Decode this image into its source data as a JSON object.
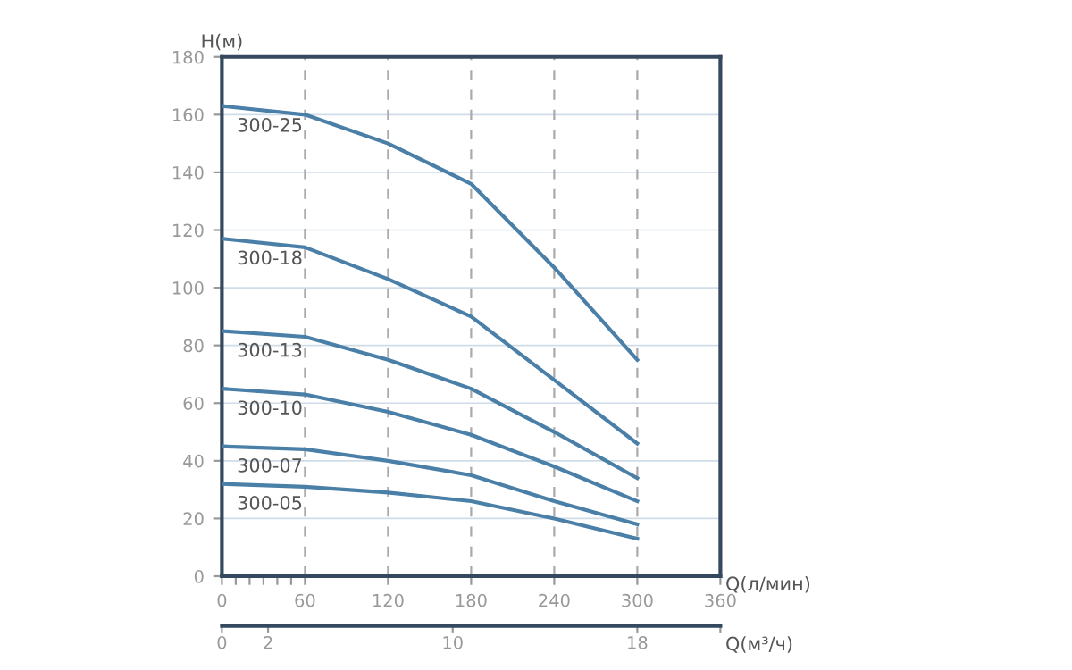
{
  "chart_data": {
    "type": "line",
    "xlabel": "Q(л/мин)",
    "x2label": "Q(м³/ч)",
    "ylabel": "H(м)",
    "x": [
      0,
      60,
      120,
      180,
      240,
      300
    ],
    "series": [
      {
        "name": "300-25",
        "color": "#4a7fa8",
        "values": [
          163,
          160,
          150,
          136,
          107,
          75
        ]
      },
      {
        "name": "300-18",
        "color": "#4a7fa8",
        "values": [
          117,
          114,
          103,
          90,
          68,
          46
        ]
      },
      {
        "name": "300-13",
        "color": "#4a7fa8",
        "values": [
          85,
          83,
          75,
          65,
          50,
          34
        ]
      },
      {
        "name": "300-10",
        "color": "#4a7fa8",
        "values": [
          65,
          63,
          57,
          49,
          38,
          26
        ]
      },
      {
        "name": "300-07",
        "color": "#4a7fa8",
        "values": [
          45,
          44,
          40,
          35,
          26,
          18
        ]
      },
      {
        "name": "300-05",
        "color": "#4a7fa8",
        "values": [
          32,
          31,
          29,
          26,
          20,
          13
        ]
      }
    ],
    "xlim": [
      0,
      360
    ],
    "xticks": [
      0,
      {
        "value": 10,
        "label": null
      },
      {
        "value": 20,
        "label": null
      },
      {
        "value": 30,
        "label": null
      },
      {
        "value": 40,
        "label": null
      },
      {
        "value": 50,
        "label": null
      },
      60,
      120,
      180,
      240,
      300,
      360
    ],
    "x2lim": [
      0,
      21.6
    ],
    "x2ticks": [
      0,
      2,
      10,
      18,
      {
        "value": 21.6,
        "label": null
      }
    ],
    "ylim": [
      0,
      180
    ],
    "yticks": [
      0,
      20,
      40,
      60,
      80,
      100,
      120,
      140,
      160,
      180
    ],
    "grid": true,
    "legend": false,
    "marker": "none",
    "line_style": "solid"
  }
}
